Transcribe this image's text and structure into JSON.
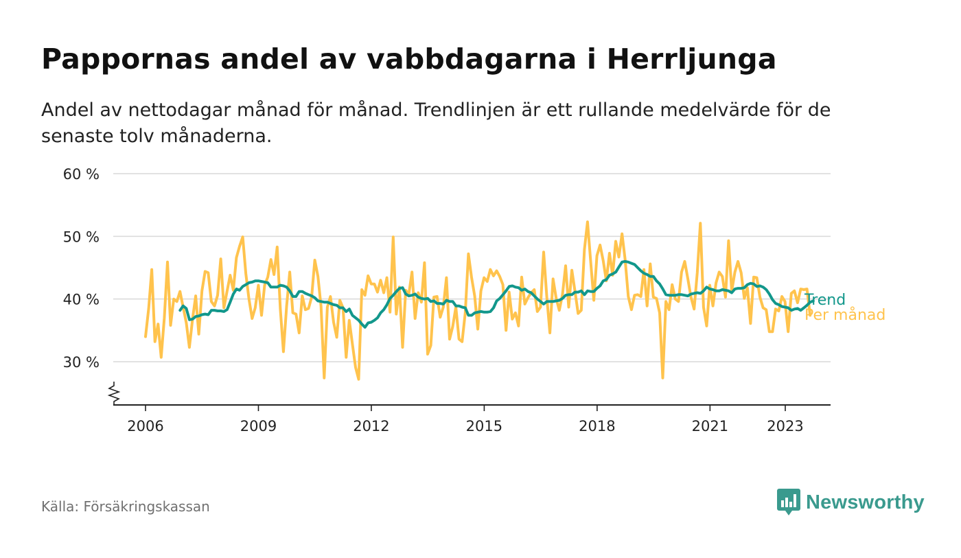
{
  "title": "Pappornas andel av vabbdagarna i Herrljunga",
  "subtitle": "Andel av nettodagar månad för månad. Trendlinjen är ett rullande medelvärde för de senaste tolv månaderna.",
  "source": "Källa: Försäkringskassan",
  "logo": {
    "name": "Newsworthy",
    "icon": "bar-chart-badge-icon"
  },
  "colors": {
    "monthly": "#ffc34d",
    "trend": "#12978b",
    "grid": "#d9d9d9",
    "axis": "#222222",
    "logo": "#3a9a8e"
  },
  "chart_data": {
    "type": "line",
    "title": "Pappornas andel av vabbdagarna i Herrljunga",
    "xlabel": "",
    "ylabel": "",
    "y_ticks": [
      30,
      40,
      50,
      60
    ],
    "y_tick_labels": [
      "30 %",
      "40 %",
      "50 %",
      "60 %"
    ],
    "ylim": [
      25,
      60
    ],
    "y_axis_broken": true,
    "x_ticks": [
      2006,
      2009,
      2012,
      2015,
      2018,
      2021,
      2023
    ],
    "x_tick_labels": [
      "2006",
      "2009",
      "2012",
      "2015",
      "2018",
      "2021",
      "2023"
    ],
    "xlim": [
      2005.2,
      2024.2
    ],
    "grid": true,
    "legend": "direct labels at line ends (right)",
    "series": [
      {
        "name": "Trend",
        "key": "trend",
        "x_start": 2006.917,
        "step": 0.0833,
        "values": [
          38.2,
          38.9,
          38.5,
          36.7,
          36.8,
          37.2,
          37.3,
          37.5,
          37.6,
          37.5,
          38.2,
          38.2,
          38.1,
          38.1,
          38.0,
          38.3,
          39.5,
          40.8,
          41.6,
          41.4,
          42.0,
          42.3,
          42.6,
          42.7,
          42.9,
          42.9,
          42.8,
          42.7,
          42.6,
          41.9,
          41.9,
          41.9,
          42.2,
          42.1,
          41.9,
          41.3,
          40.4,
          40.4,
          41.2,
          41.2,
          40.9,
          40.7,
          40.5,
          40.2,
          39.7,
          39.6,
          39.5,
          39.5,
          39.3,
          39.1,
          39.0,
          38.6,
          38.6,
          38.0,
          38.4,
          37.4,
          37.0,
          36.6,
          36.0,
          35.5,
          36.2,
          36.3,
          36.6,
          37.0,
          37.8,
          38.3,
          39.1,
          40.1,
          40.6,
          41.2,
          41.7,
          41.8,
          40.8,
          40.5,
          40.6,
          40.8,
          40.3,
          40.1,
          40.0,
          40.1,
          39.6,
          39.7,
          39.3,
          39.3,
          39.2,
          39.8,
          39.6,
          39.6,
          38.9,
          38.9,
          38.7,
          38.6,
          37.4,
          37.4,
          37.8,
          37.9,
          38.0,
          37.9,
          37.9,
          38.0,
          38.6,
          39.7,
          40.1,
          40.7,
          41.3,
          42.0,
          42.1,
          41.9,
          41.8,
          41.4,
          41.6,
          41.2,
          41.0,
          40.5,
          40.0,
          39.6,
          39.2,
          39.6,
          39.6,
          39.6,
          39.7,
          39.8,
          40.1,
          40.6,
          40.7,
          40.7,
          41.1,
          41.1,
          41.3,
          40.7,
          41.3,
          41.2,
          41.2,
          41.7,
          42.1,
          42.9,
          43.1,
          43.8,
          44.0,
          44.3,
          45.1,
          45.9,
          46.0,
          45.9,
          45.7,
          45.5,
          45.0,
          44.5,
          44.1,
          43.9,
          43.6,
          43.6,
          42.9,
          42.4,
          41.6,
          40.7,
          40.6,
          40.6,
          40.6,
          40.7,
          40.7,
          40.6,
          40.5,
          40.8,
          40.9,
          41.0,
          40.9,
          41.3,
          41.9,
          41.6,
          41.5,
          41.3,
          41.3,
          41.5,
          41.4,
          41.3,
          41.0,
          41.6,
          41.7,
          41.7,
          41.8,
          42.3,
          42.5,
          42.4,
          42.0,
          42.1,
          41.9,
          41.5,
          40.8,
          39.9,
          39.3,
          39.1,
          38.8,
          38.7,
          38.6,
          38.2,
          38.4,
          38.5,
          38.2,
          38.6,
          39.0,
          39.5,
          39.7
        ]
      },
      {
        "name": "Per månad",
        "key": "monthly",
        "x_start": 2006.0,
        "step": 0.0833,
        "values": [
          34,
          38.5,
          44.7,
          33.2,
          36,
          30.7,
          37,
          45.9,
          35.8,
          40,
          39.6,
          41.2,
          38.7,
          36.2,
          32.3,
          36.8,
          40.5,
          34.4,
          41.3,
          44.4,
          44.2,
          39.6,
          38.9,
          40.6,
          46.4,
          38.6,
          41.2,
          43.8,
          41.4,
          46.6,
          48.4,
          49.9,
          44.1,
          40,
          36.9,
          38.6,
          42.2,
          37.4,
          42.2,
          43.5,
          46.3,
          43.9,
          48.3,
          38.4,
          31.6,
          38.8,
          44.3,
          37.8,
          37.6,
          34.6,
          40.5,
          38.3,
          38.5,
          40.3,
          46.2,
          43.6,
          38.8,
          27.4,
          38.7,
          40.4,
          36.3,
          33.9,
          39.8,
          38.6,
          30.7,
          36.6,
          32.8,
          29.1,
          27.2,
          41.5,
          40.6,
          43.7,
          42.4,
          42.4,
          41.1,
          43,
          41,
          43.4,
          37.9,
          49.9,
          37.6,
          41.9,
          32.3,
          41.4,
          40.8,
          44.3,
          36.9,
          41,
          39.5,
          45.8,
          31.2,
          32.6,
          40.3,
          40.4,
          37.1,
          38.7,
          43.4,
          33.6,
          35.6,
          38.7,
          33.6,
          33.2,
          37.8,
          47.2,
          43.5,
          40.5,
          35.2,
          41.3,
          43.4,
          42.8,
          44.7,
          43.7,
          44.5,
          43.6,
          42.3,
          35,
          41.1,
          36.8,
          37.8,
          35.7,
          43.5,
          39.2,
          40.2,
          41,
          41.5,
          38,
          38.7,
          47.5,
          40.3,
          34.6,
          43.2,
          40.1,
          38.2,
          40.7,
          45.3,
          38.7,
          44.6,
          41.2,
          37.7,
          38.2,
          47.9,
          52.3,
          46,
          39.8,
          46.9,
          48.6,
          46.1,
          42.9,
          47.3,
          43.8,
          49.2,
          46.7,
          50.4,
          46.3,
          40.4,
          38.3,
          40.6,
          40.7,
          40.4,
          44.7,
          38.9,
          45.6,
          40.3,
          40.1,
          37.8,
          27.4,
          39.6,
          38.3,
          42.3,
          40,
          39.6,
          44.3,
          46,
          43.2,
          40.3,
          38.4,
          44.2,
          52.1,
          38.7,
          35.7,
          42.2,
          38.9,
          42.6,
          44.3,
          43.6,
          40.3,
          49.3,
          41.3,
          44.3,
          46,
          44.2,
          40.1,
          41.8,
          36.1,
          43.5,
          43.4,
          40.3,
          38.6,
          38.3,
          34.8,
          34.8,
          38.4,
          38.1,
          40.4,
          39.6,
          34.8,
          40.9,
          41.3,
          39.4,
          41.6,
          41.5,
          41.6,
          37.4
        ]
      }
    ]
  }
}
